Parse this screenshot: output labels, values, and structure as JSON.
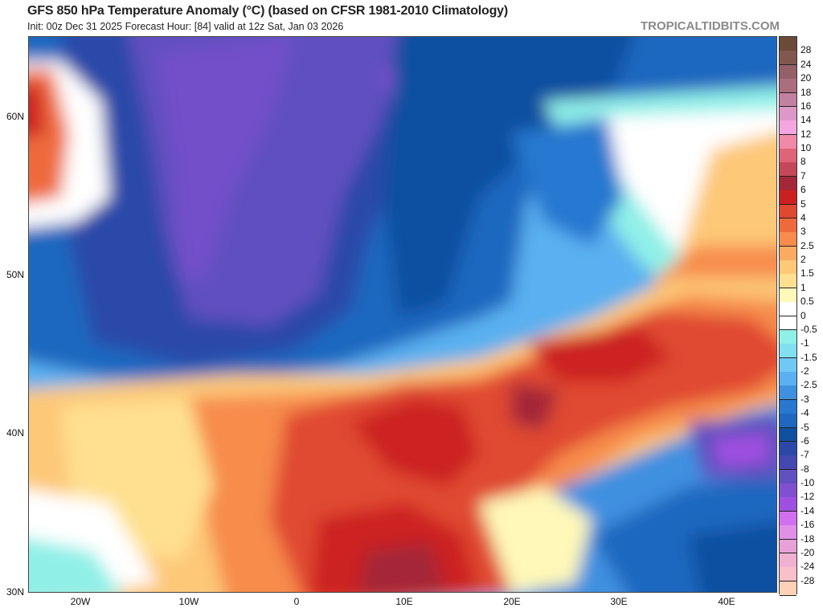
{
  "header": {
    "title": "GFS 850 hPa Temperature Anomaly (°C) (based on CFSR 1981-2010 Climatology)",
    "subtitle": "Init: 00z Dec 31 2025   Forecast Hour: [84]   valid at 12z Sat, Jan 03 2026",
    "brand": "TROPICALTIDBITS.COM"
  },
  "map": {
    "lat_labels": [
      "60N",
      "50N",
      "40N",
      "30N"
    ],
    "lon_labels": [
      "20W",
      "10W",
      "0",
      "10E",
      "20E",
      "30E",
      "40E"
    ]
  },
  "colorbar": {
    "labels": [
      "28",
      "24",
      "20",
      "18",
      "16",
      "14",
      "12",
      "10",
      "8",
      "7",
      "6",
      "5",
      "4",
      "3",
      "2.5",
      "2",
      "1.5",
      "1",
      "0.5",
      "0",
      "-0.5",
      "-1",
      "-1.5",
      "-2",
      "-2.5",
      "-3",
      "-4",
      "-5",
      "-6",
      "-7",
      "-8",
      "-10",
      "-12",
      "-14",
      "-16",
      "-18",
      "-20",
      "-24",
      "-28"
    ],
    "colors": [
      "#6b4a38",
      "#80584f",
      "#956068",
      "#ab6e7f",
      "#c480a0",
      "#de98c8",
      "#f4a6e0",
      "#f08aa8",
      "#de6478",
      "#c44858",
      "#a42838",
      "#cc2020",
      "#e04830",
      "#ee6a3c",
      "#f78c4c",
      "#fbaa60",
      "#fdc878",
      "#fee090",
      "#fff8b8",
      "#ffffff",
      "#ffffff",
      "#90f0e8",
      "#80e0f0",
      "#70c8f4",
      "#5ab0f0",
      "#4090e0",
      "#2878d0",
      "#1e68c0",
      "#1050a0",
      "#2a48a8",
      "#4448b0",
      "#6050c0",
      "#8050d0",
      "#a050e0",
      "#d070f0",
      "#e090e8",
      "#e8a0d8",
      "#f0b0d0",
      "#f8c0c8",
      "#ffd0b8"
    ]
  }
}
